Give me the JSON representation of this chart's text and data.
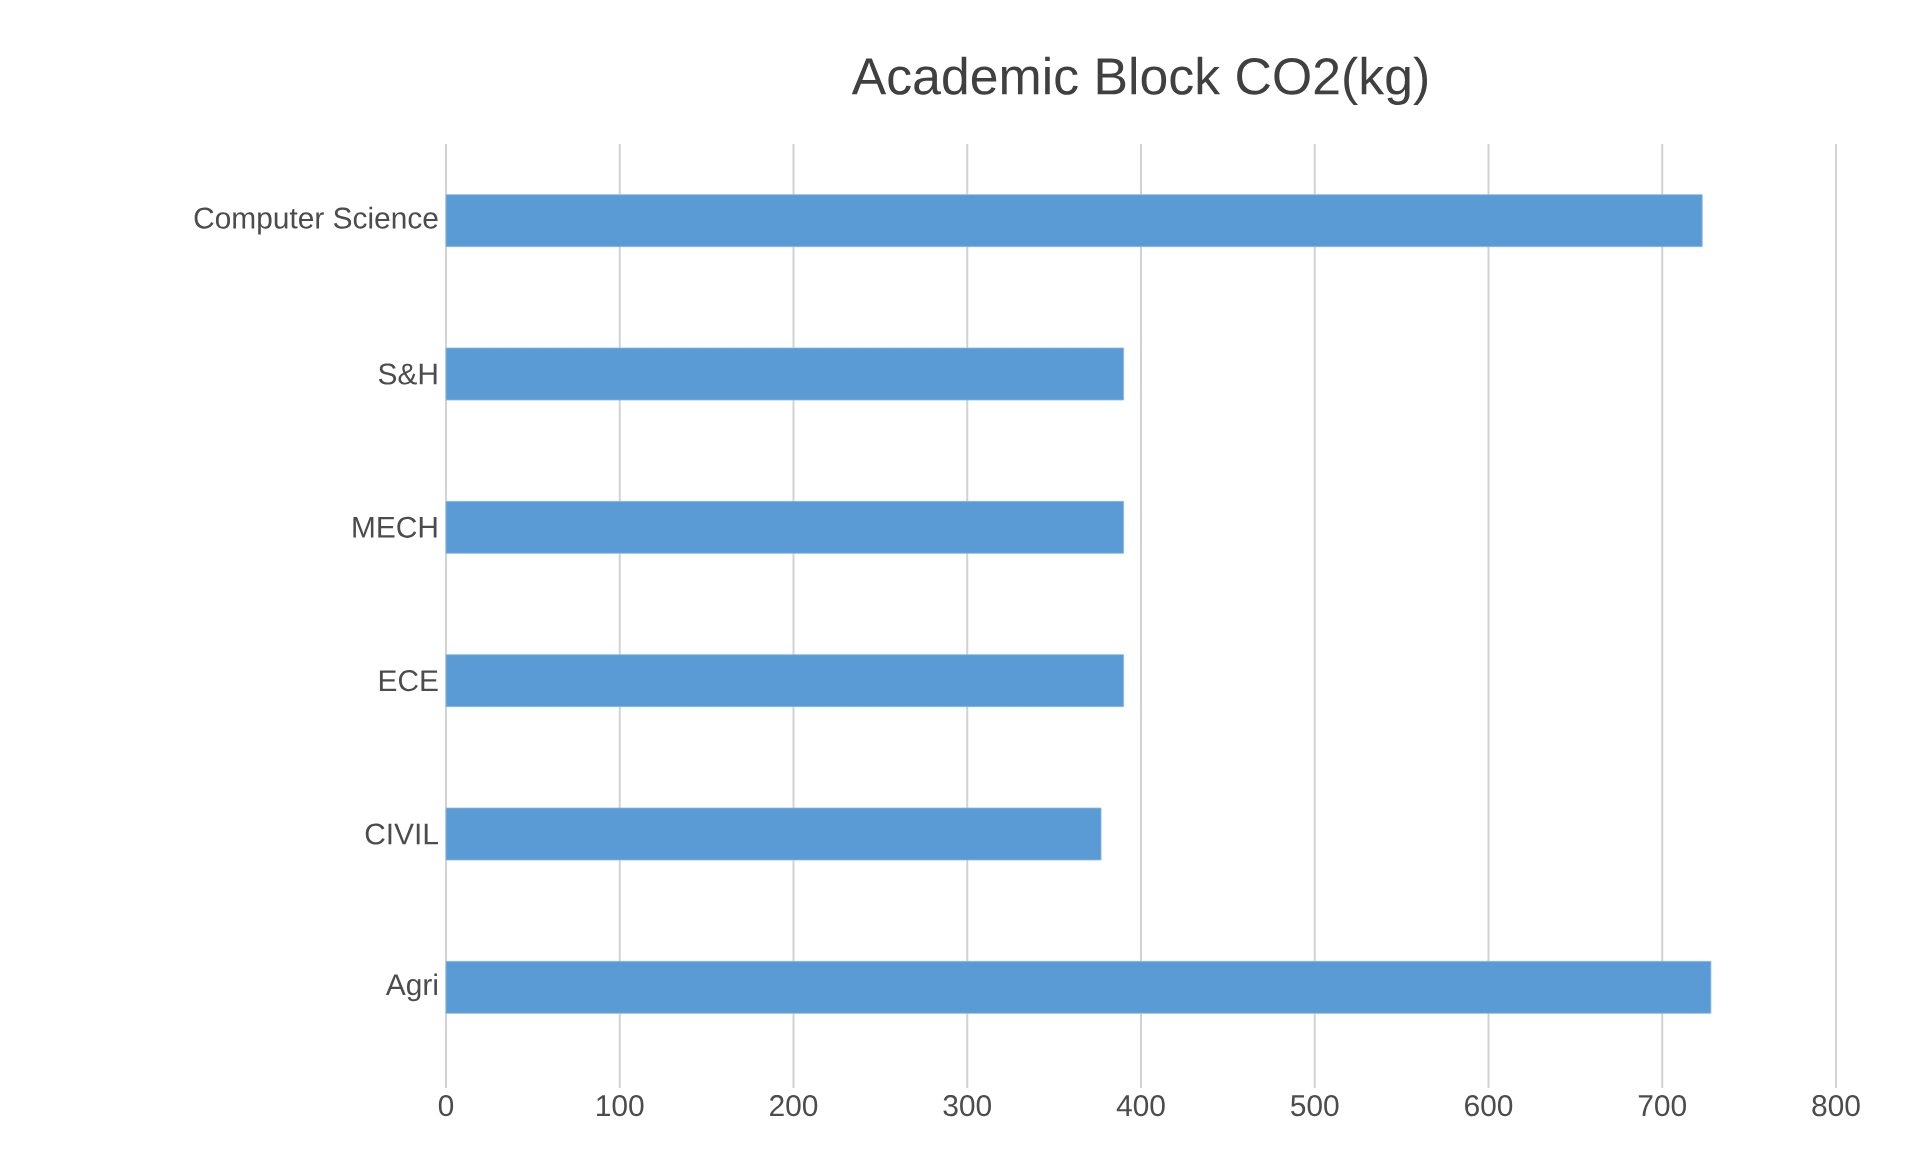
{
  "chart_data": {
    "type": "bar",
    "orientation": "horizontal",
    "title": "Academic Block CO2(kg)",
    "categories": [
      "Computer Science",
      "S&H",
      "MECH",
      "ECE",
      "CIVIL",
      "Agri"
    ],
    "values": [
      723,
      390,
      390,
      390,
      377,
      728
    ],
    "color": "#5b9bd5",
    "xlim": [
      0,
      800
    ],
    "xticks": [
      0,
      100,
      200,
      300,
      400,
      500,
      600,
      700,
      800
    ],
    "grid": "x"
  }
}
